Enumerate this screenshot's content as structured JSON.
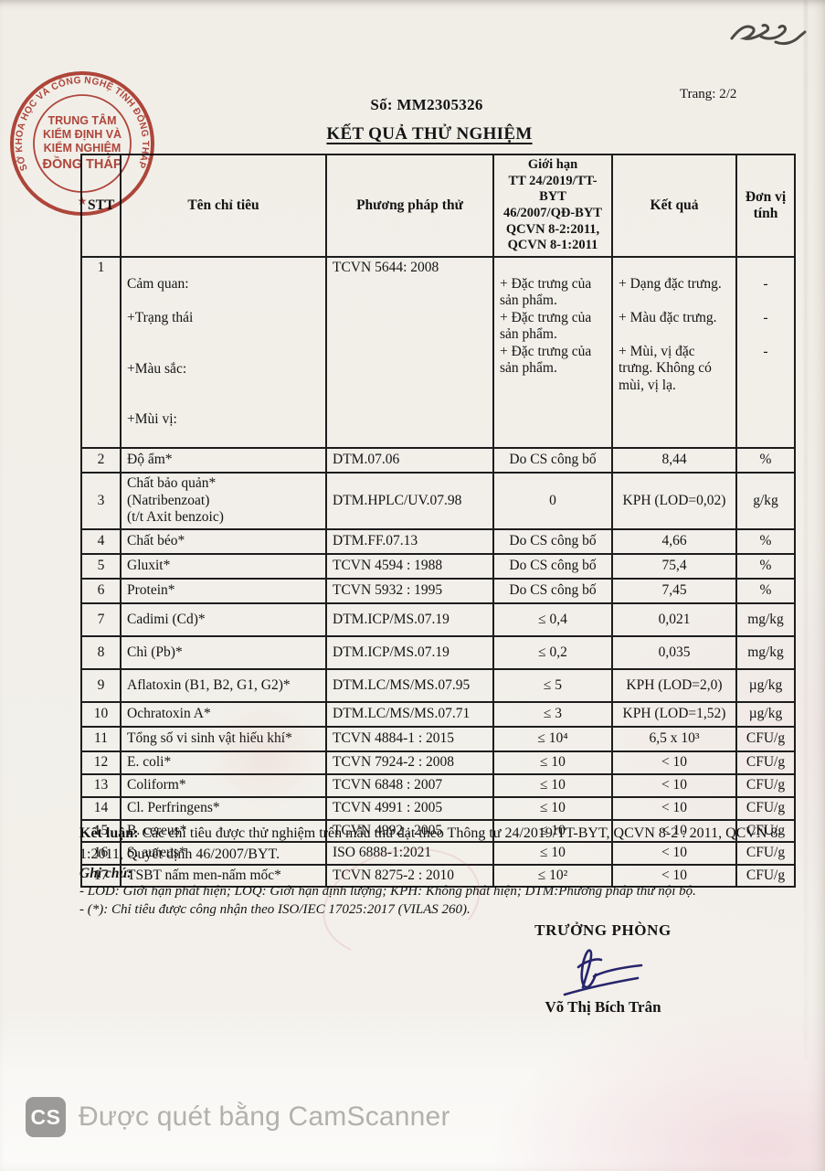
{
  "header": {
    "doc_number": "Số: MM2305326",
    "page_indicator": "Trang: 2/2",
    "title": "KẾT QUẢ THỬ NGHIỆM"
  },
  "stamp": {
    "ring_text": "SỞ KHOA HỌC VÀ CÔNG NGHỆ TỈNH ĐỒNG THÁP",
    "line1": "TRUNG TÂM",
    "line2": "KIỂM ĐỊNH VÀ",
    "line3": "KIỂM NGHIỆM",
    "line4": "ĐỒNG THÁP",
    "star": "★",
    "color": "#b23a2e"
  },
  "table": {
    "headers": {
      "stt": "STT",
      "name": "Tên chỉ tiêu",
      "method": "Phương pháp thử",
      "limit": "Giới hạn\nTT 24/2019/TT-BYT\n46/2007/QĐ-BYT\nQCVN 8-2:2011,\nQCVN 8-1:2011",
      "result": "Kết quả",
      "unit": "Đơn vị tính"
    },
    "row1": {
      "stt": "1",
      "name_lines": [
        "Cảm quan:",
        "+Trạng thái",
        "+Màu sắc:",
        "+Mùi vị:"
      ],
      "method": "TCVN 5644: 2008",
      "limit_items": [
        "+ Đặc trưng của sản phẩm.",
        "+ Đặc trưng của sản phẩm.",
        "+ Đặc trưng của sản phẩm."
      ],
      "result_items": [
        "+ Dạng đặc trưng.",
        "+ Màu đặc trưng.",
        "+ Mùi, vị đặc trưng. Không có mùi, vị lạ."
      ],
      "unit_items": [
        "-",
        "-",
        "-"
      ]
    },
    "rows": [
      {
        "stt": "2",
        "name": "Độ ẩm*",
        "method": "DTM.07.06",
        "limit": "Do CS công bố",
        "result": "8,44",
        "unit": "%"
      },
      {
        "stt": "3",
        "name": "Chất bảo quản*\n(Natribenzoat)\n(t/t Axit benzoic)",
        "method": "DTM.HPLC/UV.07.98",
        "limit": "0",
        "result": "KPH (LOD=0,02)",
        "unit": "g/kg"
      },
      {
        "stt": "4",
        "name": "Chất béo*",
        "method": "DTM.FF.07.13",
        "limit": "Do CS công bố",
        "result": "4,66",
        "unit": "%"
      },
      {
        "stt": "5",
        "name": "Gluxit*",
        "method": "TCVN 4594 : 1988",
        "limit": "Do CS công bố",
        "result": "75,4",
        "unit": "%"
      },
      {
        "stt": "6",
        "name": "Protein*",
        "method": "TCVN 5932 : 1995",
        "limit": "Do CS công bố",
        "result": "7,45",
        "unit": "%"
      },
      {
        "stt": "7",
        "name": "Cadimi (Cd)*",
        "method": "DTM.ICP/MS.07.19",
        "limit": "≤ 0,4",
        "result": "0,021",
        "unit": "mg/kg"
      },
      {
        "stt": "8",
        "name": "Chì (Pb)*",
        "method": "DTM.ICP/MS.07.19",
        "limit": "≤ 0,2",
        "result": "0,035",
        "unit": "mg/kg"
      },
      {
        "stt": "9",
        "name": "Aflatoxin (B1, B2, G1, G2)*",
        "method": "DTM.LC/MS/MS.07.95",
        "limit": "≤ 5",
        "result": "KPH (LOD=2,0)",
        "unit": "µg/kg"
      },
      {
        "stt": "10",
        "name": "Ochratoxin A*",
        "method": "DTM.LC/MS/MS.07.71",
        "limit": "≤ 3",
        "result": "KPH (LOD=1,52)",
        "unit": "µg/kg"
      },
      {
        "stt": "11",
        "name": "Tổng số vi sinh vật hiếu khí*",
        "method": "TCVN 4884-1 : 2015",
        "limit": "≤ 10⁴",
        "result": "6,5 x 10³",
        "unit": "CFU/g"
      },
      {
        "stt": "12",
        "name": "E. coli*",
        "method": "TCVN 7924-2 : 2008",
        "limit": "≤ 10",
        "result": "< 10",
        "unit": "CFU/g"
      },
      {
        "stt": "13",
        "name": "Coliform*",
        "method": "TCVN 6848 : 2007",
        "limit": "≤ 10",
        "result": "< 10",
        "unit": "CFU/g"
      },
      {
        "stt": "14",
        "name": "Cl. Perfringens*",
        "method": "TCVN 4991 : 2005",
        "limit": "≤ 10",
        "result": "< 10",
        "unit": "CFU/g"
      },
      {
        "stt": "15",
        "name": "B. cereus*",
        "method": "TCVN 4992 : 2005",
        "limit": "≤ 10",
        "result": "< 10",
        "unit": "CFU/g"
      },
      {
        "stt": "16",
        "name": "S. aureus*",
        "method": "ISO 6888-1:2021",
        "limit": "≤ 10",
        "result": "< 10",
        "unit": "CFU/g"
      },
      {
        "stt": "17",
        "name": "TSBT nấm men-nấm mốc*",
        "method": "TCVN 8275-2 : 2010",
        "limit": "≤ 10²",
        "result": "< 10",
        "unit": "CFU/g"
      }
    ]
  },
  "footer": {
    "conclusion_label": "Kết luận:",
    "conclusion_text": " Các chỉ tiêu được thử nghiệm trên mẫu thử đạt theo Thông tư 24/2019/TT-BYT, QCVN 8-2 : 2011, QCVN 8-1:2011, Quyết định 46/2007/BYT.",
    "notes_label": "Ghi chú:",
    "note1": "- LOD: Giới hạn phát hiện; LOQ: Giới hạn định lượng; KPH: Không phát hiện; DTM:Phương pháp thử nội bộ.",
    "note2": "- (*): Chỉ tiêu được công nhận theo ISO/IEC 17025:2017 (VILAS 260)."
  },
  "signature": {
    "role": "TRƯỞNG PHÒNG",
    "name": "Võ Thị Bích Trân"
  },
  "watermark": {
    "badge": "CS",
    "text": "Được quét bằng CamScanner"
  }
}
